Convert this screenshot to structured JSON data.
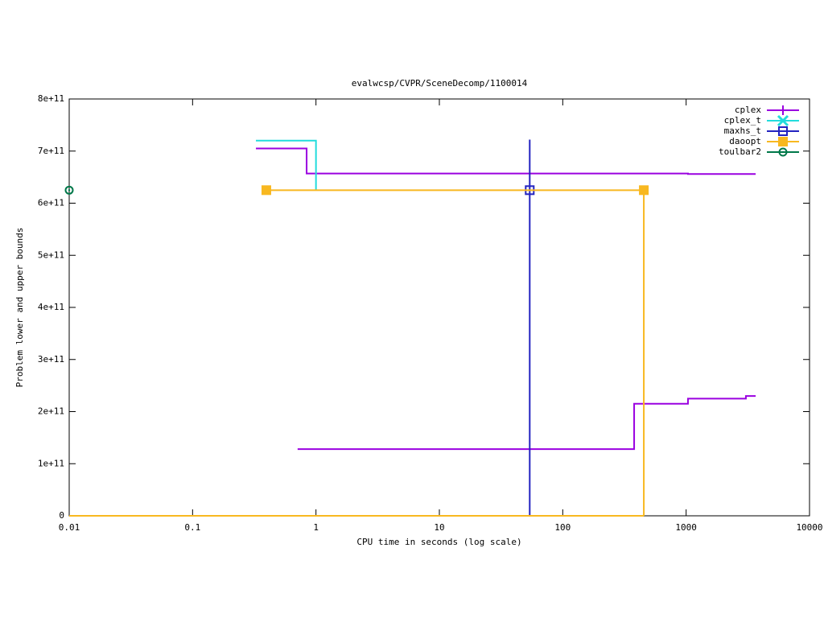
{
  "chart_data": {
    "type": "line",
    "title": "evalwcsp/CVPR/SceneDecomp/1100014",
    "x_label": "CPU time in seconds (log scale)",
    "y_label": "Problem lower and upper bounds",
    "xscale": "log",
    "xlim": [
      0.01,
      10000
    ],
    "xticks": [
      0.01,
      0.1,
      1,
      10,
      100,
      1000,
      10000
    ],
    "ylim": [
      0,
      800000000000
    ],
    "yticks": [
      0,
      {
        "value": 100000000000,
        "label": "1e+11"
      },
      {
        "value": 200000000000,
        "label": "2e+11"
      },
      {
        "value": 300000000000,
        "label": "3e+11"
      },
      {
        "value": 400000000000,
        "label": "4e+11"
      },
      {
        "value": 500000000000,
        "label": "5e+11"
      },
      {
        "value": 600000000000,
        "label": "6e+11"
      },
      {
        "value": 700000000000,
        "label": "7e+11"
      },
      {
        "value": 800000000000,
        "label": "8e+11"
      }
    ],
    "legend": "top-right",
    "series": [
      {
        "name": "cplex",
        "color": "#9a00e0",
        "marker": "plus",
        "x": [
          0.326,
          0.84,
          0.84,
          1035,
          1035,
          3660,
          null,
          0.71,
          379,
          379,
          1035,
          1035,
          3050,
          3050,
          3660
        ],
        "values": [
          705000000000,
          705000000000,
          657000000000,
          657000000000,
          656000000000,
          656000000000,
          null,
          128000000000,
          128000000000,
          215000000000,
          215000000000,
          225000000000,
          225000000000,
          230000000000,
          230000000000
        ]
      },
      {
        "name": "cplex_t",
        "color": "#22dcdc",
        "marker": "cross",
        "x": [
          0.326,
          1,
          1
        ],
        "values": [
          720000000000,
          720000000000,
          625000000000
        ]
      },
      {
        "name": "maxhs_t",
        "color": "#2424c0",
        "marker": "open-square",
        "x": [
          54,
          54
        ],
        "values": [
          0,
          722000000000
        ],
        "points_x": [
          54
        ],
        "points_values": [
          625000000000
        ]
      },
      {
        "name": "daoopt",
        "color": "#f8b820",
        "marker": "filled-square",
        "x": [
          0.396,
          454,
          454,
          null,
          0.01,
          454
        ],
        "values": [
          625000000000,
          625000000000,
          0,
          null,
          0,
          0
        ],
        "points_x": [
          0.396,
          454
        ],
        "points_values": [
          625000000000,
          625000000000
        ]
      },
      {
        "name": "toulbar2",
        "color": "#00784a",
        "marker": "open-circle",
        "points_x": [
          0.01
        ],
        "points_values": [
          625000000000
        ]
      }
    ]
  }
}
